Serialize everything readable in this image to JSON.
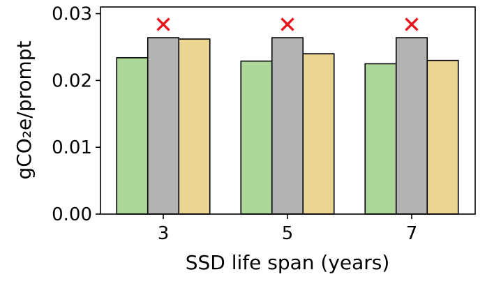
{
  "chart_data": {
    "type": "bar",
    "xlabel": "SSD life span (years)",
    "ylabel": "gCO₂e/prompt",
    "ylim": [
      0,
      0.031
    ],
    "yticks": [
      "0.00",
      "0.01",
      "0.02",
      "0.03"
    ],
    "yticks_values": [
      0,
      0.01,
      0.02,
      0.03
    ],
    "grid": false,
    "categories": [
      "3",
      "5",
      "7"
    ],
    "series": [
      {
        "color": "#acd798",
        "values": [
          0.0234,
          0.0229,
          0.0225
        ]
      },
      {
        "color": "#b3b3b3",
        "values": [
          0.0264,
          0.0264,
          0.0264
        ]
      },
      {
        "color": "#ead593",
        "values": [
          0.0262,
          0.024,
          0.023
        ]
      }
    ],
    "markers": {
      "symbol": "×",
      "color": "#e8141c",
      "series_index": 1,
      "values": [
        0.0284,
        0.0284,
        0.0284
      ]
    }
  }
}
